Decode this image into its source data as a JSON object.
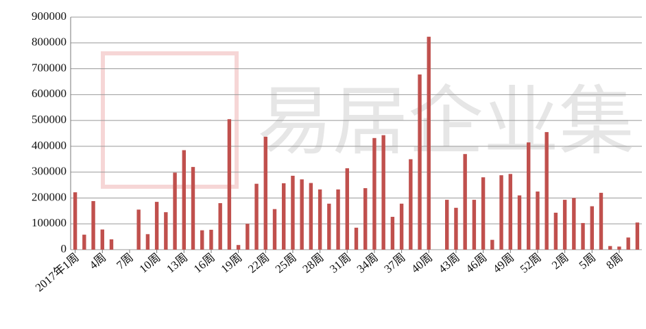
{
  "chart_data": {
    "type": "bar",
    "watermark": "易居企业集",
    "categories": [
      "2017年1周",
      null,
      null,
      "4周",
      null,
      null,
      "7周",
      null,
      null,
      "10周",
      null,
      null,
      "13周",
      null,
      null,
      "16周",
      null,
      null,
      "19周",
      null,
      null,
      "22周",
      null,
      null,
      "25周",
      null,
      null,
      "28周",
      null,
      null,
      "31周",
      null,
      null,
      "34周",
      null,
      null,
      "37周",
      null,
      null,
      "40周",
      null,
      null,
      "43周",
      null,
      null,
      "46周",
      null,
      null,
      "49周",
      null,
      null,
      "52周",
      null,
      null,
      "2周",
      null,
      null,
      "5周",
      null,
      null,
      "8周",
      null,
      null
    ],
    "values": [
      222000,
      58000,
      188000,
      78000,
      40000,
      0,
      0,
      155000,
      60000,
      185000,
      145000,
      298000,
      385000,
      320000,
      75000,
      77000,
      180000,
      505000,
      18000,
      100000,
      255000,
      437000,
      157000,
      257000,
      286000,
      272000,
      258000,
      233000,
      178000,
      233000,
      315000,
      85000,
      238000,
      432000,
      443000,
      127000,
      178000,
      350000,
      678000,
      824000,
      0,
      193000,
      162000,
      370000,
      193000,
      280000,
      38000,
      288000,
      293000,
      210000,
      415000,
      225000,
      455000,
      143000,
      193000,
      200000,
      103000,
      168000,
      220000,
      14000,
      12000,
      47000,
      105000
    ],
    "color": "#c0504d",
    "ylim": [
      0,
      900000
    ],
    "yticks": [
      0,
      100000,
      200000,
      300000,
      400000,
      500000,
      600000,
      700000,
      800000,
      900000
    ],
    "grid": true
  }
}
